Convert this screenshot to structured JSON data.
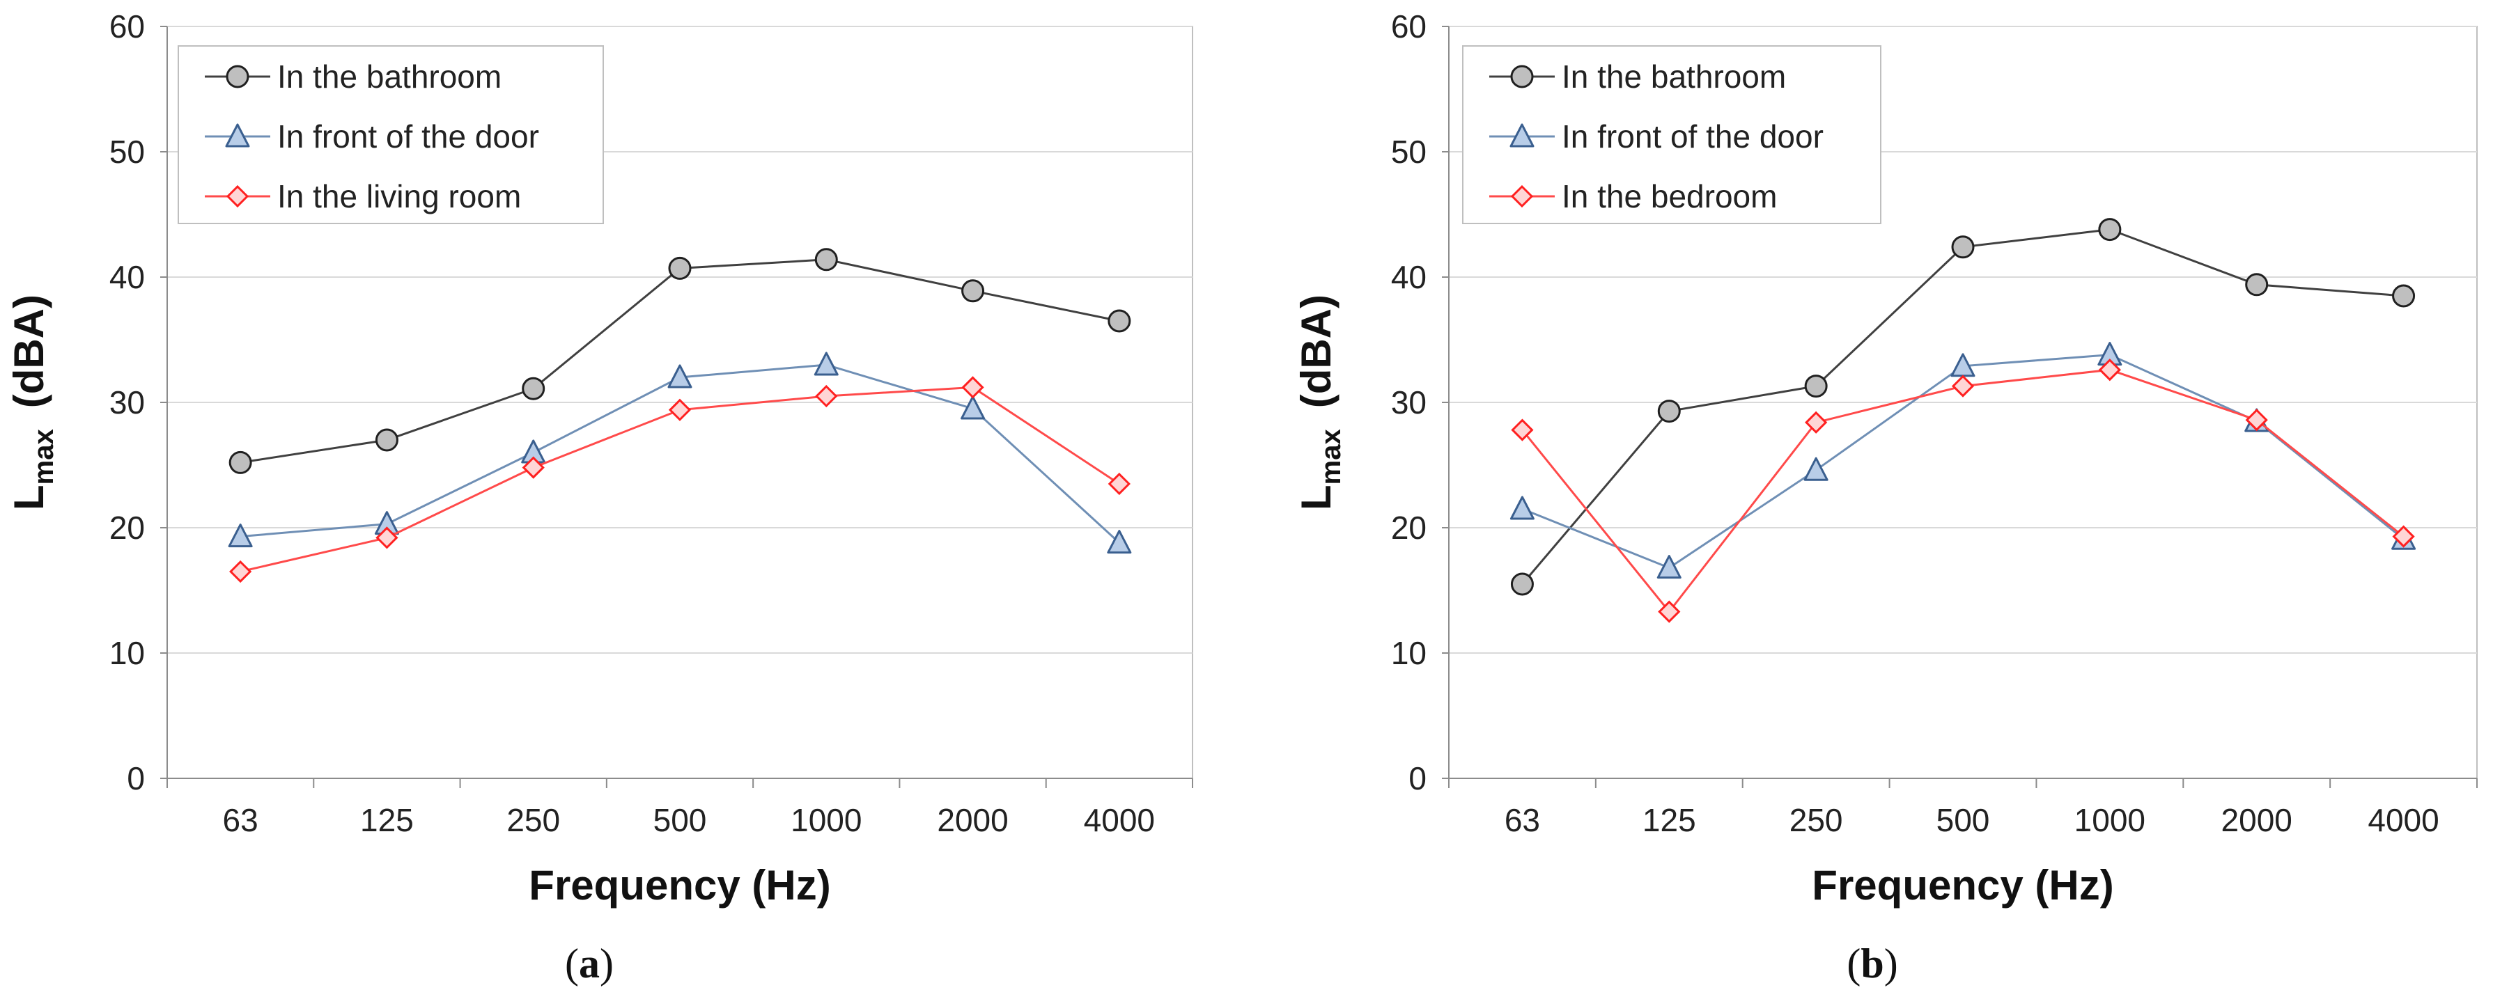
{
  "chart_data": [
    {
      "type": "line",
      "panel": "a",
      "caption_open": "(",
      "caption_letter": "a",
      "caption_close": ")",
      "categories": [
        "63",
        "125",
        "250",
        "500",
        "1000",
        "2000",
        "4000"
      ],
      "xlabel": "Frequency (Hz)",
      "ylabel_main": "L",
      "ylabel_sub": "max",
      "ylabel_unit": "(dBA)",
      "ylim": [
        0,
        60
      ],
      "yticks": [
        "0",
        "10",
        "20",
        "30",
        "40",
        "50",
        "60"
      ],
      "grid": true,
      "legend_position": "top-left",
      "series": [
        {
          "name": "In the bathroom",
          "marker": "circle",
          "line_color": "#404040",
          "fill": "#bfbfbf",
          "stroke": "#202020",
          "values": [
            25.2,
            27.0,
            31.1,
            40.7,
            41.4,
            38.9,
            36.5
          ]
        },
        {
          "name": "In front of the door",
          "marker": "triangle",
          "line_color": "#6f8fb5",
          "fill": "#b8cde8",
          "stroke": "#3a5f8f",
          "values": [
            19.3,
            20.3,
            26.0,
            32.0,
            33.0,
            29.5,
            18.8
          ]
        },
        {
          "name": "In the living room",
          "marker": "diamond",
          "line_color": "#ff4a4a",
          "fill": "#ffd6d6",
          "stroke": "#ff2020",
          "values": [
            16.5,
            19.2,
            24.8,
            29.4,
            30.5,
            31.2,
            23.5
          ]
        }
      ]
    },
    {
      "type": "line",
      "panel": "b",
      "caption_open": "(",
      "caption_letter": "b",
      "caption_close": ")",
      "categories": [
        "63",
        "125",
        "250",
        "500",
        "1000",
        "2000",
        "4000"
      ],
      "xlabel": "Frequency (Hz)",
      "ylabel_main": "L",
      "ylabel_sub": "max",
      "ylabel_unit": "(dBA)",
      "ylim": [
        0,
        60
      ],
      "yticks": [
        "0",
        "10",
        "20",
        "30",
        "40",
        "50",
        "60"
      ],
      "grid": true,
      "legend_position": "top-left",
      "series": [
        {
          "name": "In the bathroom",
          "marker": "circle",
          "line_color": "#404040",
          "fill": "#bfbfbf",
          "stroke": "#202020",
          "values": [
            15.5,
            29.3,
            31.3,
            42.4,
            43.8,
            39.4,
            38.5
          ]
        },
        {
          "name": "In front of the door",
          "marker": "triangle",
          "line_color": "#6f8fb5",
          "fill": "#b8cde8",
          "stroke": "#3a5f8f",
          "values": [
            21.5,
            16.8,
            24.6,
            32.9,
            33.8,
            28.5,
            19.1
          ]
        },
        {
          "name": "In the bedroom",
          "marker": "diamond",
          "line_color": "#ff4a4a",
          "fill": "#ffd6d6",
          "stroke": "#ff2020",
          "values": [
            27.8,
            13.3,
            28.4,
            31.3,
            32.6,
            28.6,
            19.3
          ]
        }
      ]
    }
  ]
}
